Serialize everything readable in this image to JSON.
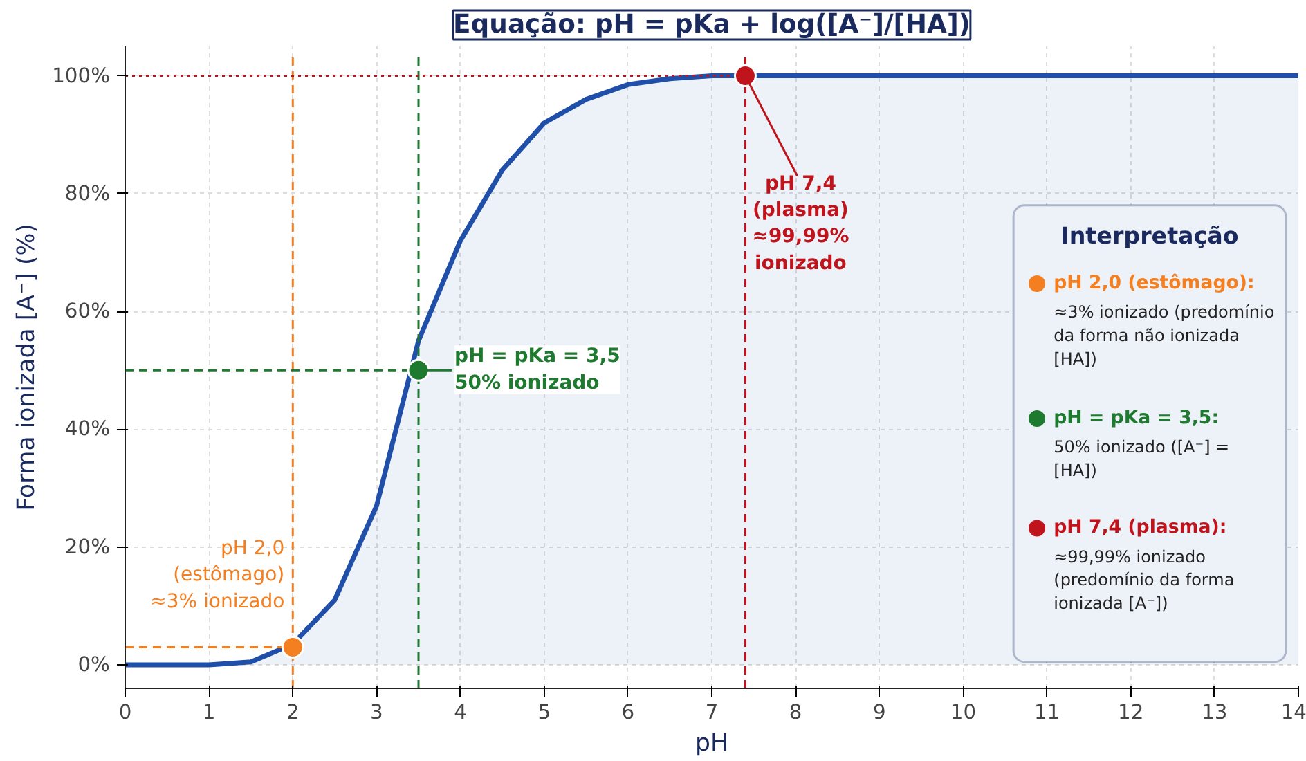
{
  "chart_data": {
    "type": "area",
    "title": "Equação: pH = pKa + log([A⁻]/[HA])",
    "xlabel": "pH",
    "ylabel": "Forma ionizada [A⁻] (%)",
    "legend_title": "Interpretação",
    "xlim": [
      0,
      14
    ],
    "ylim": [
      -4,
      105
    ],
    "xticks": [
      0,
      1,
      2,
      3,
      4,
      5,
      6,
      7,
      8,
      9,
      10,
      11,
      12,
      13,
      14
    ],
    "yticks": [
      {
        "value": 0,
        "label": "0%"
      },
      {
        "value": 20,
        "label": "20%"
      },
      {
        "value": 40,
        "label": "40%"
      },
      {
        "value": 60,
        "label": "60%"
      },
      {
        "value": 80,
        "label": "80%"
      },
      {
        "value": 100,
        "label": "100%"
      }
    ],
    "grid": true,
    "legend": "bottom right",
    "series": [
      {
        "color": "#1f4fa8",
        "x": [
          0,
          0.5,
          1,
          1.5,
          2,
          2.5,
          3,
          3.5,
          4,
          4.5,
          5,
          5.5,
          6,
          6.5,
          7,
          8,
          9,
          10,
          11,
          12,
          13,
          14
        ],
        "values": [
          0,
          0,
          0,
          0.5,
          3.5,
          11,
          27,
          55,
          72,
          84,
          92,
          96,
          98.5,
          99.5,
          100,
          100,
          100,
          100,
          100,
          100,
          100,
          100
        ]
      },
      {
        "type": "scatter",
        "name": "pH 2,0 (estômago):",
        "color": "#f47f20",
        "x": [
          2.0
        ],
        "values": [
          3
        ]
      },
      {
        "type": "scatter",
        "name": "pH = pKa = 3,5:",
        "color": "#1e7a2e",
        "x": [
          3.5
        ],
        "values": [
          50
        ]
      },
      {
        "type": "scatter",
        "name": "pH 7,4 (plasma):",
        "color": "#c0141c",
        "x": [
          7.4
        ],
        "values": [
          100
        ]
      }
    ],
    "ref_lines": [
      {
        "axis": "x",
        "value": 2.0,
        "color": "#f47f20",
        "line_style": "dashed"
      },
      {
        "axis": "x",
        "value": 3.5,
        "color": "#1e7a2e",
        "line_style": "dashed"
      },
      {
        "axis": "x",
        "value": 7.4,
        "color": "#c0141c",
        "line_style": "dashed"
      },
      {
        "axis": "y",
        "value": 3,
        "color": "#f47f20",
        "line_style": "dashed"
      },
      {
        "axis": "y",
        "value": 50,
        "color": "#1e7a2e",
        "line_style": "dashed"
      },
      {
        "axis": "y",
        "value": 100,
        "color": "#c0141c",
        "line_style": "dotted"
      }
    ],
    "annotations": [
      {
        "text": "pH 2,0\n(estômago)\n≈3% ionizado",
        "x": 2.0,
        "y": 3
      },
      {
        "text": "pH = pKa = 3,5\n50% ionizado",
        "x": 3.5,
        "y": 50
      },
      {
        "text": "pH 7,4\n(plasma)\n≈99,99%\nionizado",
        "x": 7.4,
        "y": 100
      },
      "≈3% ionizado (predomínio da forma não ionizada [HA])",
      "50% ionizado ([A⁻] = [HA])",
      "≈99,99% ionizado (predomínio da forma ionizada [A⁻])"
    ]
  }
}
